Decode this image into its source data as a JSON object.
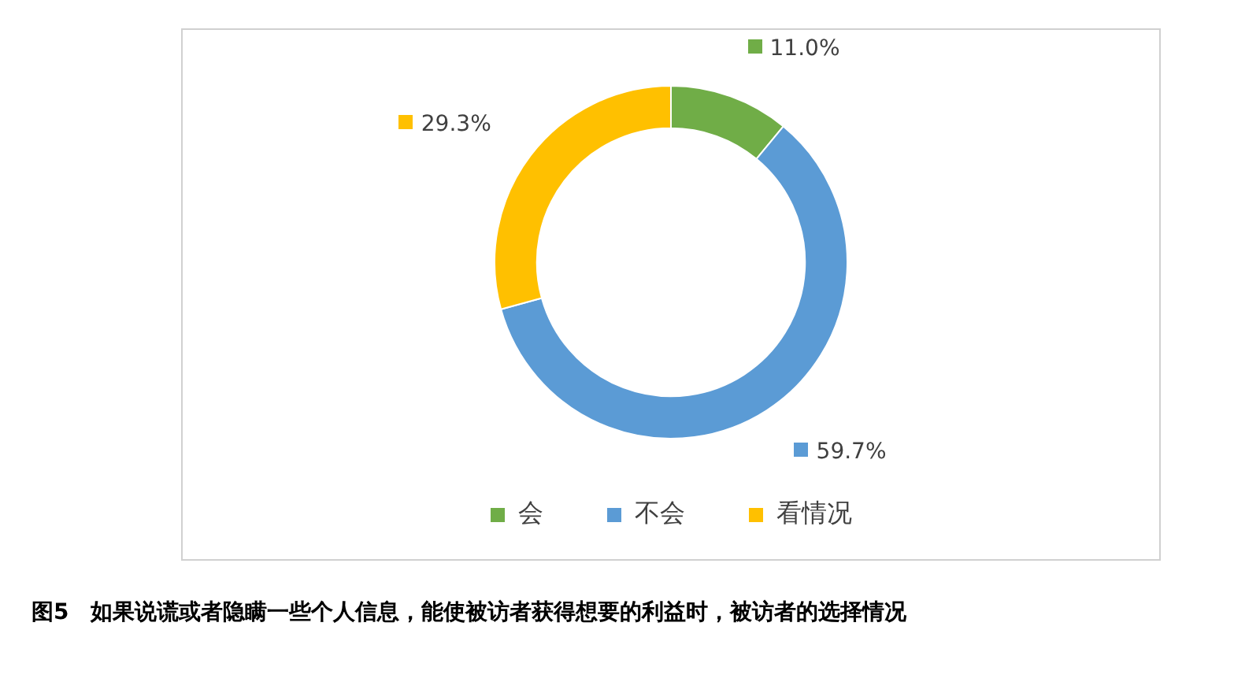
{
  "chart_data": {
    "type": "donut",
    "categories": [
      "会",
      "不会",
      "看情况"
    ],
    "values": [
      11.0,
      59.7,
      29.3
    ],
    "colors": [
      "#70ad47",
      "#5b9bd5",
      "#ffc000"
    ],
    "value_labels": [
      "11.0%",
      "59.7%",
      "29.3%"
    ],
    "legend": "bottom",
    "annotations": [
      "图5　如果说谎或者隐瞒一些个人信息，能使被访者获得想要的利益时，被访者的选择情况"
    ]
  }
}
